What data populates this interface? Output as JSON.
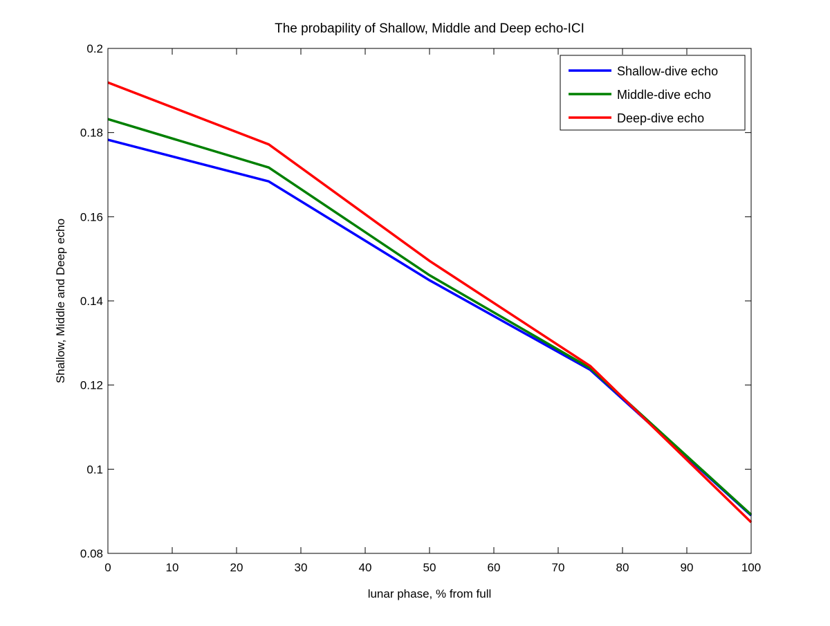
{
  "chart_data": {
    "type": "line",
    "title": "The probapility of Shallow, Middle and Deep echo-ICI",
    "xlabel": "lunar phase, % from full",
    "ylabel": "Shallow, Middle and Deep echo",
    "xlim": [
      0,
      100
    ],
    "ylim": [
      0.08,
      0.2
    ],
    "xticks": [
      0,
      10,
      20,
      30,
      40,
      50,
      60,
      70,
      80,
      90,
      100
    ],
    "xtick_labels": [
      "0",
      "10",
      "20",
      "30",
      "40",
      "50",
      "60",
      "70",
      "80",
      "90",
      "100"
    ],
    "yticks": [
      0.08,
      0.1,
      0.12,
      0.14,
      0.16,
      0.18,
      0.2
    ],
    "ytick_labels": [
      "0.08",
      "0.1",
      "0.12",
      "0.14",
      "0.16",
      "0.18",
      "0.2"
    ],
    "grid": false,
    "legend_position": "top-right",
    "x": [
      0,
      25,
      50,
      75,
      100
    ],
    "series": [
      {
        "name": "Shallow-dive echo",
        "color": "#0000ff",
        "values": [
          0.1783,
          0.1684,
          0.1449,
          0.1236,
          0.089
        ]
      },
      {
        "name": "Middle-dive echo",
        "color": "#008000",
        "values": [
          0.1832,
          0.1717,
          0.1461,
          0.124,
          0.0892
        ]
      },
      {
        "name": "Deep-dive echo",
        "color": "#ff0000",
        "values": [
          0.1919,
          0.1772,
          0.1495,
          0.1245,
          0.0874
        ]
      }
    ]
  }
}
